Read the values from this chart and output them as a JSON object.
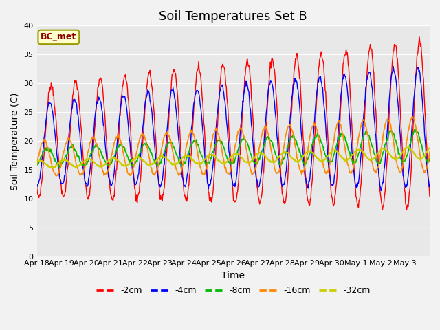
{
  "title": "Soil Temperatures Set B",
  "xlabel": "Time",
  "ylabel": "Soil Temperature (C)",
  "ylim": [
    0,
    40
  ],
  "yticks": [
    0,
    5,
    10,
    15,
    20,
    25,
    30,
    35,
    40
  ],
  "x_labels": [
    "Apr 18",
    "Apr 19",
    "Apr 20",
    "Apr 21",
    "Apr 22",
    "Apr 23",
    "Apr 24",
    "Apr 25",
    "Apr 26",
    "Apr 27",
    "Apr 28",
    "Apr 29",
    "Apr 30",
    "May 1",
    "May 2",
    "May 3"
  ],
  "legend_labels": [
    "-2cm",
    "-4cm",
    "-8cm",
    "-16cm",
    "-32cm"
  ],
  "legend_colors": [
    "#ff0000",
    "#0000ff",
    "#00bb00",
    "#ff8800",
    "#cccc00"
  ],
  "annotation_text": "BC_met",
  "bg_color": "#e8e8e8",
  "title_fontsize": 13,
  "axis_fontsize": 10,
  "n_days": 16,
  "pts_per_day": 48
}
